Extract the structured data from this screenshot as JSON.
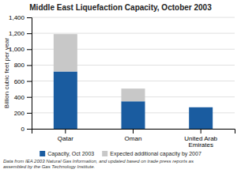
{
  "chart_data": {
    "type": "bar",
    "stacked": true,
    "title": "Middle East Liquefaction Capacity, October 2003",
    "categories": [
      "Qatar",
      "Oman",
      "United Arab\nEmirates"
    ],
    "series": [
      {
        "name": "Capacity, Oct 2003",
        "color": "#1a5ca0",
        "values": [
          720,
          345,
          270
        ]
      },
      {
        "name": "Expected additional capacity by 2007",
        "color": "#c8c8c8",
        "values": [
          470,
          160,
          0
        ]
      }
    ],
    "ylabel": "Billion cubic feet per year",
    "ylim": [
      0,
      1400
    ],
    "yticks": [
      0,
      200,
      400,
      600,
      800,
      {
        "value": 1000,
        "label": "1,000"
      },
      {
        "value": 1200,
        "label": "1,200"
      },
      {
        "value": 1400,
        "label": "1,400"
      }
    ],
    "grid": true,
    "legend": "bottom",
    "annotations": [
      "Data from IEA 2003 Natural Gas Information, and updated based on trade press reports as\nassembled by the Gas Technology Institute."
    ]
  }
}
